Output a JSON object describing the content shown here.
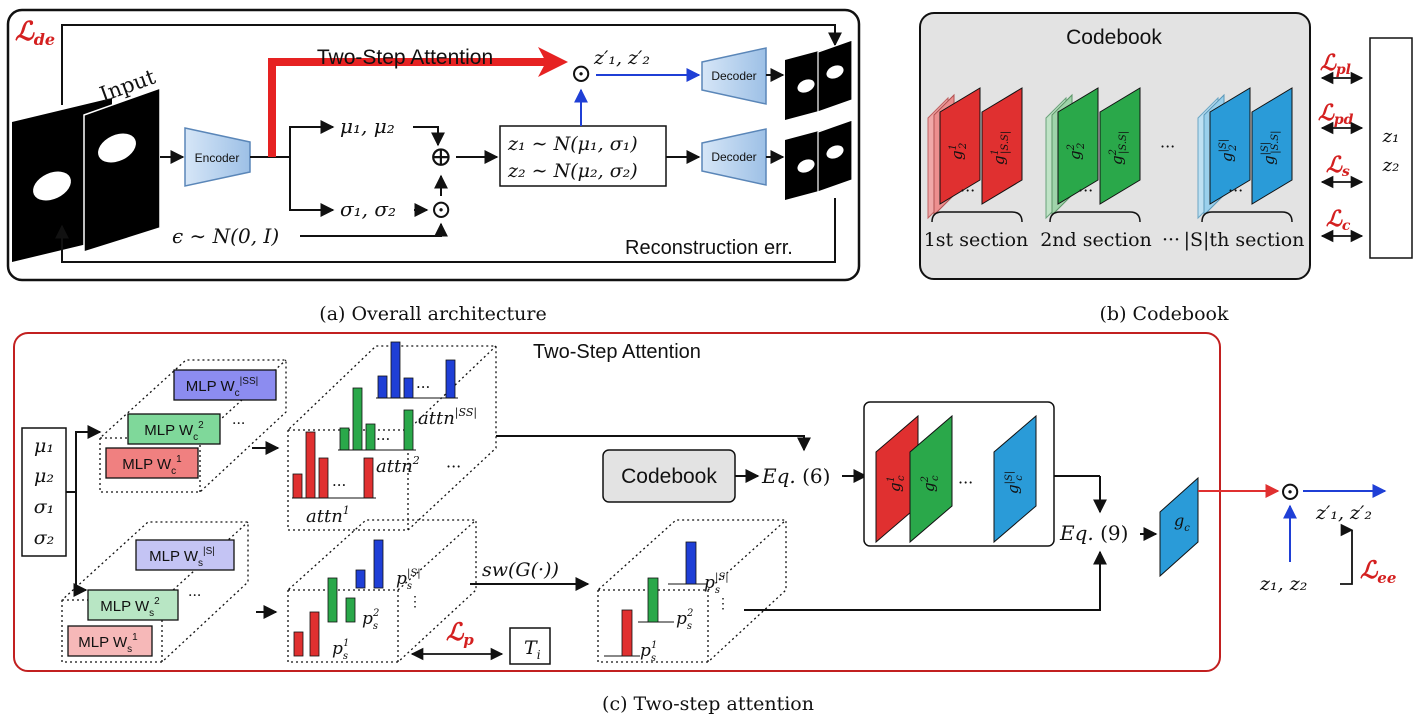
{
  "panel_a": {
    "loss_de": "ℒ",
    "loss_de_sub": "de",
    "input_label": "Input",
    "encoder_label": "Encoder",
    "decoder_top": "Decoder",
    "decoder_bottom": "Decoder",
    "attention_label": "Two-Step Attention",
    "z_prime": "z′₁, z′₂",
    "mu": "μ₁, μ₂",
    "sigma": "σ₁, σ₂",
    "oplus": "⊕",
    "odot": "⊙",
    "z1_dist": "z₁ ∼ N(μ₁, σ₁)",
    "z2_dist": "z₂ ∼ N(μ₂, σ₂)",
    "epsilon": "ϵ ∼ N(0, I)",
    "recon": "Reconstruction err.",
    "caption": "(a) Overall architecture"
  },
  "panel_b": {
    "title": "Codebook",
    "sec1": "1st section",
    "sec2": "2nd section",
    "dots": "···",
    "sec3": "|S|th section",
    "l_pl": "pl",
    "l_pd": "pd",
    "l_s": "s",
    "l_c": "c",
    "loss_glyph": "ℒ",
    "z1": "z₁",
    "z2": "z₂",
    "g_red": "g",
    "g_red_sup": "1",
    "g_red_sub": "2",
    "g_red2_sup": "1",
    "g_red2_sub": "|S.S|",
    "g_green_sup": "2",
    "g_green_sub": "2",
    "g_green2_sup": "2",
    "g_green2_sub": "|S.S|",
    "g_blue_sup": "|S|",
    "g_blue_sub": "2",
    "g_blue2_sup": "|S|",
    "g_blue2_sub": "|S.S|",
    "caption": "(b) Codebook"
  },
  "panel_c": {
    "title": "Two-Step Attention",
    "inputs": [
      "μ₁",
      "μ₂",
      "σ₁",
      "σ₂"
    ],
    "mlp_c1": "MLP W",
    "mlp_c1_sub": "c",
    "mlp_c1_sup": "1",
    "mlp_c2": "MLP W",
    "mlp_c2_sub": "c",
    "mlp_c2_sup": "2",
    "mlp_c3": "MLP W",
    "mlp_c3_sub": "c",
    "mlp_c3_sup": "|SS|",
    "mlp_s1": "MLP W",
    "mlp_s1_sub": "s",
    "mlp_s1_sup": "1",
    "mlp_s2": "MLP W",
    "mlp_s2_sub": "s",
    "mlp_s2_sup": "2",
    "mlp_s3": "MLP W",
    "mlp_s3_sub": "s",
    "mlp_s3_sup": "|S|",
    "attn1": "attn",
    "attn1_sup": "1",
    "attn2": "attn",
    "attn2_sup": "2",
    "attn3": "attn",
    "attn3_sup": "|SS|",
    "dots": "···",
    "vdots": "⋮",
    "codebook": "Codebook",
    "eq6": "Eq.",
    "eq6_num": "(6)",
    "eq9": "Eq.",
    "eq9_num": "(9)",
    "ps": "p",
    "ps_sub": "s",
    "ps1_sup": "1",
    "ps2_sup": "2",
    "ps3_sup": "|S|",
    "sw": "sw(G(·))",
    "loss_p": "ℒ",
    "loss_p_sub": "p",
    "ti": "T",
    "ti_sub": "i",
    "gc": "g",
    "gc_sub": "c",
    "gc1_sup": "1",
    "gc2_sup": "2",
    "gc3_sup": "|S|",
    "odot": "⊙",
    "z_prime": "z′₁, z′₂",
    "z12": "z₁, z₂",
    "loss_ee": "ℒ",
    "loss_ee_sub": "ee",
    "caption": "(c) Two-step attention"
  },
  "colors": {
    "red": "#e03030",
    "green": "#2aa84a",
    "blue": "#1f3fd6",
    "cyan": "#2a9bd8",
    "loss": "#d42020"
  }
}
